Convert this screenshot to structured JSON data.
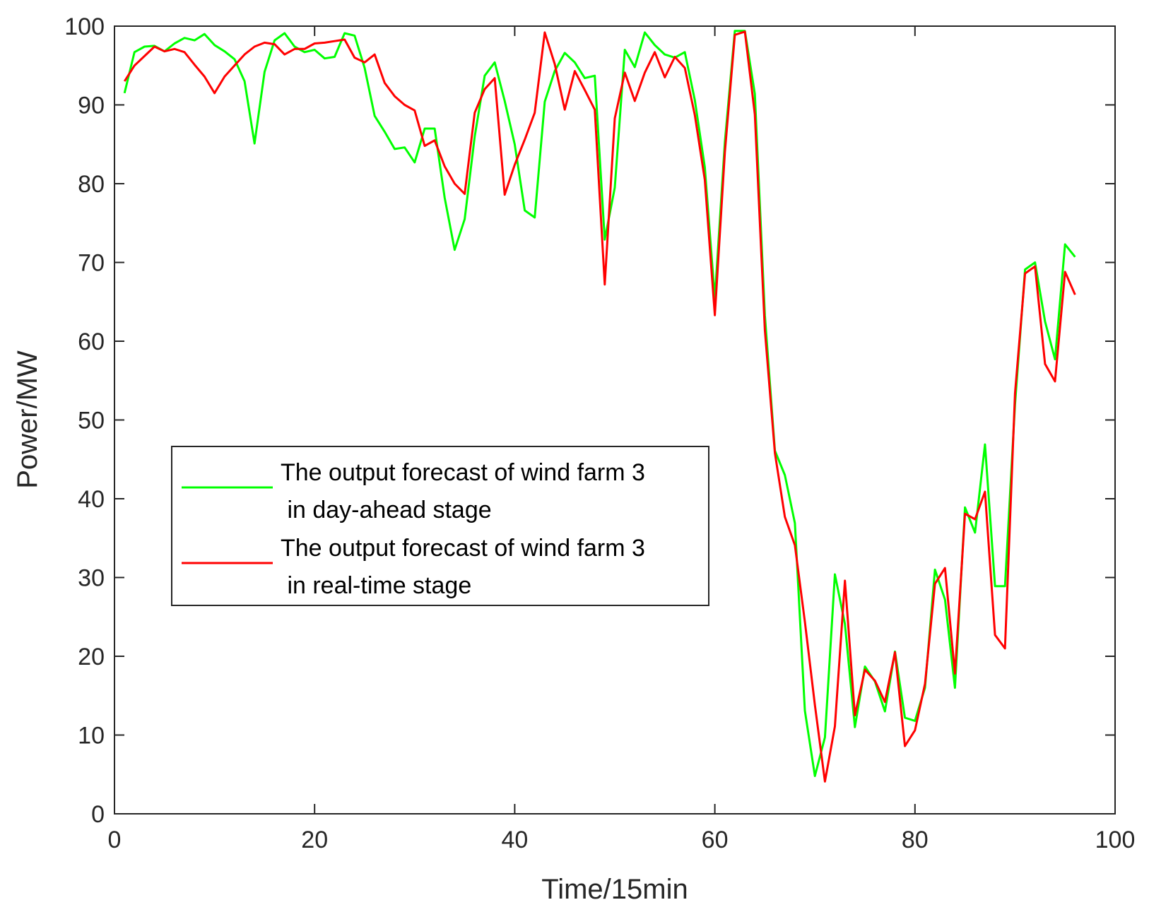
{
  "chart_data": {
    "type": "line",
    "xlabel": "Time/15min",
    "ylabel": "Power/MW",
    "xlim": [
      0,
      100
    ],
    "ylim": [
      0,
      100
    ],
    "xticks": [
      0,
      20,
      40,
      60,
      80,
      100
    ],
    "yticks": [
      0,
      10,
      20,
      30,
      40,
      50,
      60,
      70,
      80,
      90,
      100
    ],
    "grid": false,
    "legend_position": "center-left",
    "series": [
      {
        "name": "The output forecast of wind farm 3 in day-ahead stage",
        "legend_lines": [
          "The output forecast of wind farm 3",
          " in day-ahead stage"
        ],
        "color": "#00ff00",
        "x": [
          1,
          2,
          3,
          4,
          5,
          6,
          7,
          8,
          9,
          10,
          11,
          12,
          13,
          14,
          15,
          16,
          17,
          18,
          19,
          20,
          21,
          22,
          23,
          24,
          25,
          26,
          27,
          28,
          29,
          30,
          31,
          32,
          33,
          34,
          35,
          36,
          37,
          38,
          39,
          40,
          41,
          42,
          43,
          44,
          45,
          46,
          47,
          48,
          49,
          50,
          51,
          52,
          53,
          54,
          55,
          56,
          57,
          58,
          59,
          60,
          61,
          62,
          63,
          64,
          65,
          66,
          67,
          68,
          69,
          70,
          71,
          72,
          73,
          74,
          75,
          76,
          77,
          78,
          79,
          80,
          81,
          82,
          83,
          84,
          85,
          86,
          87,
          88,
          89,
          90,
          91,
          92,
          93,
          94,
          95,
          96
        ],
        "y": [
          91.5,
          96.7,
          97.4,
          97.5,
          96.8,
          97.8,
          98.5,
          98.2,
          99.0,
          97.6,
          96.8,
          95.8,
          93.0,
          85.1,
          94.2,
          98.2,
          99.1,
          97.4,
          96.7,
          97.0,
          95.9,
          96.1,
          99.1,
          98.8,
          94.7,
          88.6,
          86.6,
          84.4,
          84.6,
          82.7,
          87.0,
          87.0,
          78.2,
          71.6,
          75.5,
          86.0,
          93.7,
          95.4,
          90.5,
          85.0,
          76.6,
          75.7,
          90.4,
          94.3,
          96.6,
          95.4,
          93.4,
          93.7,
          72.9,
          79.5,
          97.0,
          94.8,
          99.2,
          97.6,
          96.4,
          96.0,
          96.7,
          90.6,
          82.1,
          65.4,
          85.3,
          99.4,
          99.4,
          91.4,
          63.3,
          46.1,
          43.0,
          36.9,
          13.1,
          4.8,
          9.7,
          30.4,
          24.1,
          11.0,
          18.7,
          16.8,
          13.0,
          20.6,
          12.2,
          11.8,
          16.0,
          31.0,
          27.2,
          16.0,
          38.9,
          35.7,
          46.9,
          28.9,
          28.9,
          52.0,
          69.1,
          70.0,
          62.5,
          57.7,
          72.3,
          70.7
        ]
      },
      {
        "name": "The output forecast of wind farm 3 in real-time stage",
        "legend_lines": [
          "The output forecast of wind farm 3",
          " in real-time stage"
        ],
        "color": "#ff0000",
        "x": [
          1,
          2,
          3,
          4,
          5,
          6,
          7,
          8,
          9,
          10,
          11,
          12,
          13,
          14,
          15,
          16,
          17,
          18,
          19,
          20,
          21,
          22,
          23,
          24,
          25,
          26,
          27,
          28,
          29,
          30,
          31,
          32,
          33,
          34,
          35,
          36,
          37,
          38,
          39,
          40,
          41,
          42,
          43,
          44,
          45,
          46,
          47,
          48,
          49,
          50,
          51,
          52,
          53,
          54,
          55,
          56,
          57,
          58,
          59,
          60,
          61,
          62,
          63,
          64,
          65,
          66,
          67,
          68,
          69,
          70,
          71,
          72,
          73,
          74,
          75,
          76,
          77,
          78,
          79,
          80,
          81,
          82,
          83,
          84,
          85,
          86,
          87,
          88,
          89,
          90,
          91,
          92,
          93,
          94,
          95,
          96
        ],
        "y": [
          93.0,
          95.0,
          96.2,
          97.4,
          96.8,
          97.1,
          96.7,
          95.1,
          93.6,
          91.5,
          93.6,
          95.0,
          96.4,
          97.4,
          97.9,
          97.7,
          96.4,
          97.1,
          97.1,
          97.8,
          97.9,
          98.1,
          98.3,
          96.0,
          95.4,
          96.4,
          92.8,
          91.1,
          90.0,
          89.3,
          84.8,
          85.5,
          82.2,
          80.0,
          78.7,
          89.0,
          92.0,
          93.4,
          78.6,
          82.4,
          85.6,
          89.0,
          99.2,
          95.2,
          89.4,
          94.3,
          91.9,
          89.4,
          67.2,
          88.3,
          94.1,
          90.5,
          94.1,
          96.7,
          93.5,
          96.1,
          94.7,
          88.7,
          80.5,
          63.3,
          84.0,
          98.9,
          99.3,
          88.8,
          61.4,
          45.8,
          37.7,
          34.1,
          24.4,
          13.8,
          4.1,
          11.1,
          29.6,
          12.5,
          18.3,
          16.9,
          14.2,
          20.5,
          8.6,
          10.6,
          16.5,
          29.2,
          31.2,
          17.8,
          38.1,
          37.4,
          40.9,
          22.7,
          21.0,
          53.4,
          68.6,
          69.5,
          57.1,
          54.9,
          68.8,
          65.9
        ]
      }
    ]
  }
}
